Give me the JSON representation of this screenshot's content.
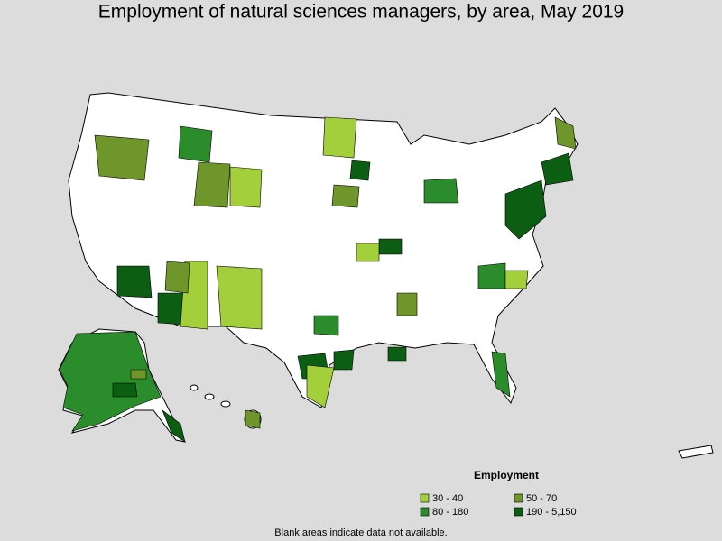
{
  "title": "Employment of natural sciences managers, by area, May 2019",
  "legend": {
    "title": "Employment",
    "items": [
      {
        "label": "30 - 40",
        "color": "#a3cf3b"
      },
      {
        "label": "50 - 70",
        "color": "#6f962b"
      },
      {
        "label": "80 - 180",
        "color": "#2a8c2a"
      },
      {
        "label": "190 - 5,150",
        "color": "#0b5e12"
      }
    ]
  },
  "note": "Blank areas indicate data not available."
}
